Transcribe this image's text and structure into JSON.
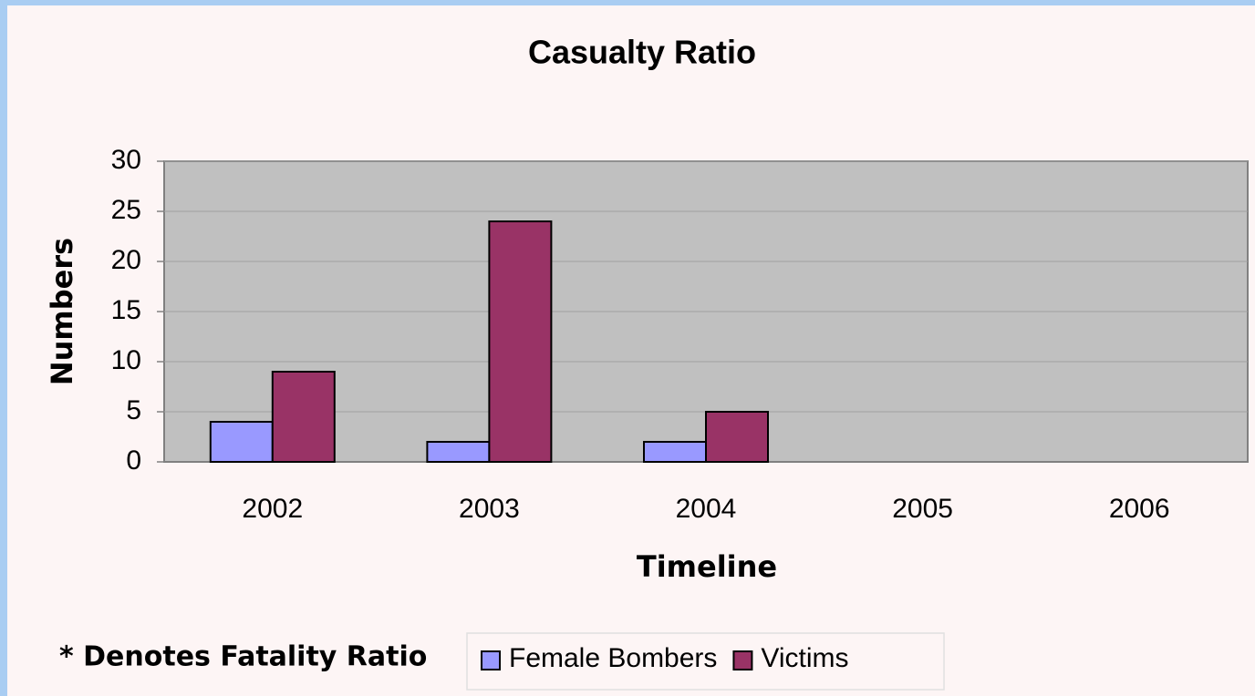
{
  "chart_data": {
    "type": "bar",
    "title": "Casualty Ratio",
    "x_label": "Timeline",
    "y_label": "Numbers",
    "annotation": "* Denotes Fatality Ratio",
    "categories": [
      "2002",
      "2003",
      "2004",
      "2005",
      "2006"
    ],
    "series": [
      {
        "name": "Female Bombers",
        "color": "#9999ff",
        "values": [
          4,
          2,
          2,
          null,
          null
        ]
      },
      {
        "name": "Victims",
        "color": "#993366",
        "values": [
          9,
          24,
          5,
          null,
          null
        ]
      }
    ],
    "ylim": [
      0,
      30
    ],
    "yticks": [
      0,
      5,
      10,
      15,
      20,
      25,
      30
    ],
    "grid": true,
    "legend": "bottom"
  }
}
